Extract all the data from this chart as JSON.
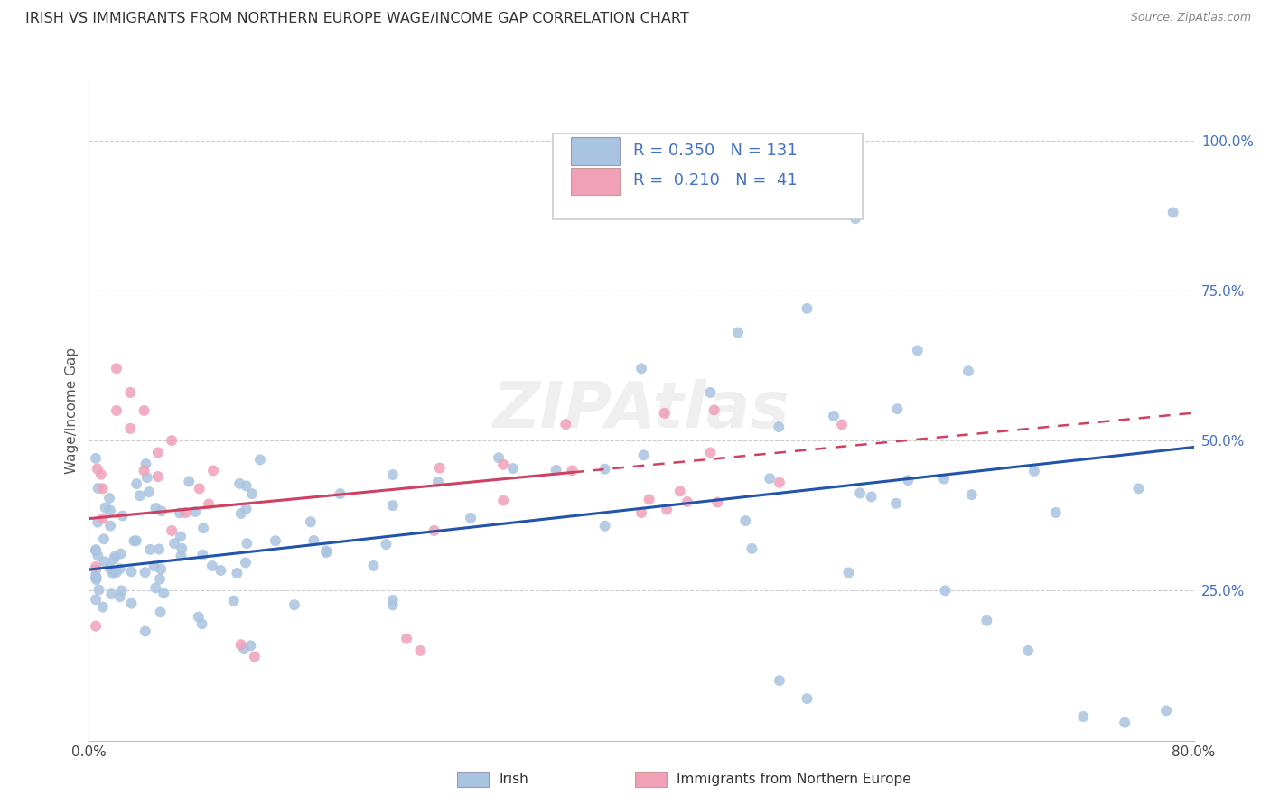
{
  "title": "IRISH VS IMMIGRANTS FROM NORTHERN EUROPE WAGE/INCOME GAP CORRELATION CHART",
  "source": "Source: ZipAtlas.com",
  "ylabel": "Wage/Income Gap",
  "xlim": [
    0.0,
    0.8
  ],
  "ylim": [
    0.0,
    1.1
  ],
  "ytick_pos": [
    0.25,
    0.5,
    0.75,
    1.0
  ],
  "ytick_labels": [
    "25.0%",
    "50.0%",
    "75.0%",
    "100.0%"
  ],
  "xtick_positions": [
    0.0,
    0.1,
    0.2,
    0.3,
    0.4,
    0.5,
    0.6,
    0.7,
    0.8
  ],
  "xtick_labels": [
    "0.0%",
    "",
    "",
    "",
    "",
    "",
    "",
    "",
    "80.0%"
  ],
  "blue_color": "#a8c4e0",
  "blue_line_color": "#2255aa",
  "pink_color": "#f0a0b8",
  "pink_line_color": "#d04060",
  "pink_dash_color": "#d04060",
  "legend_R1": "0.350",
  "legend_N1": "131",
  "legend_R2": "0.210",
  "legend_N2": "41",
  "legend_label1": "Irish",
  "legend_label2": "Immigrants from Northern Europe",
  "watermark": "ZIPAtlas",
  "grid_color": "#cccccc",
  "text_color": "#4472c4",
  "title_color": "#333333",
  "source_color": "#888888"
}
